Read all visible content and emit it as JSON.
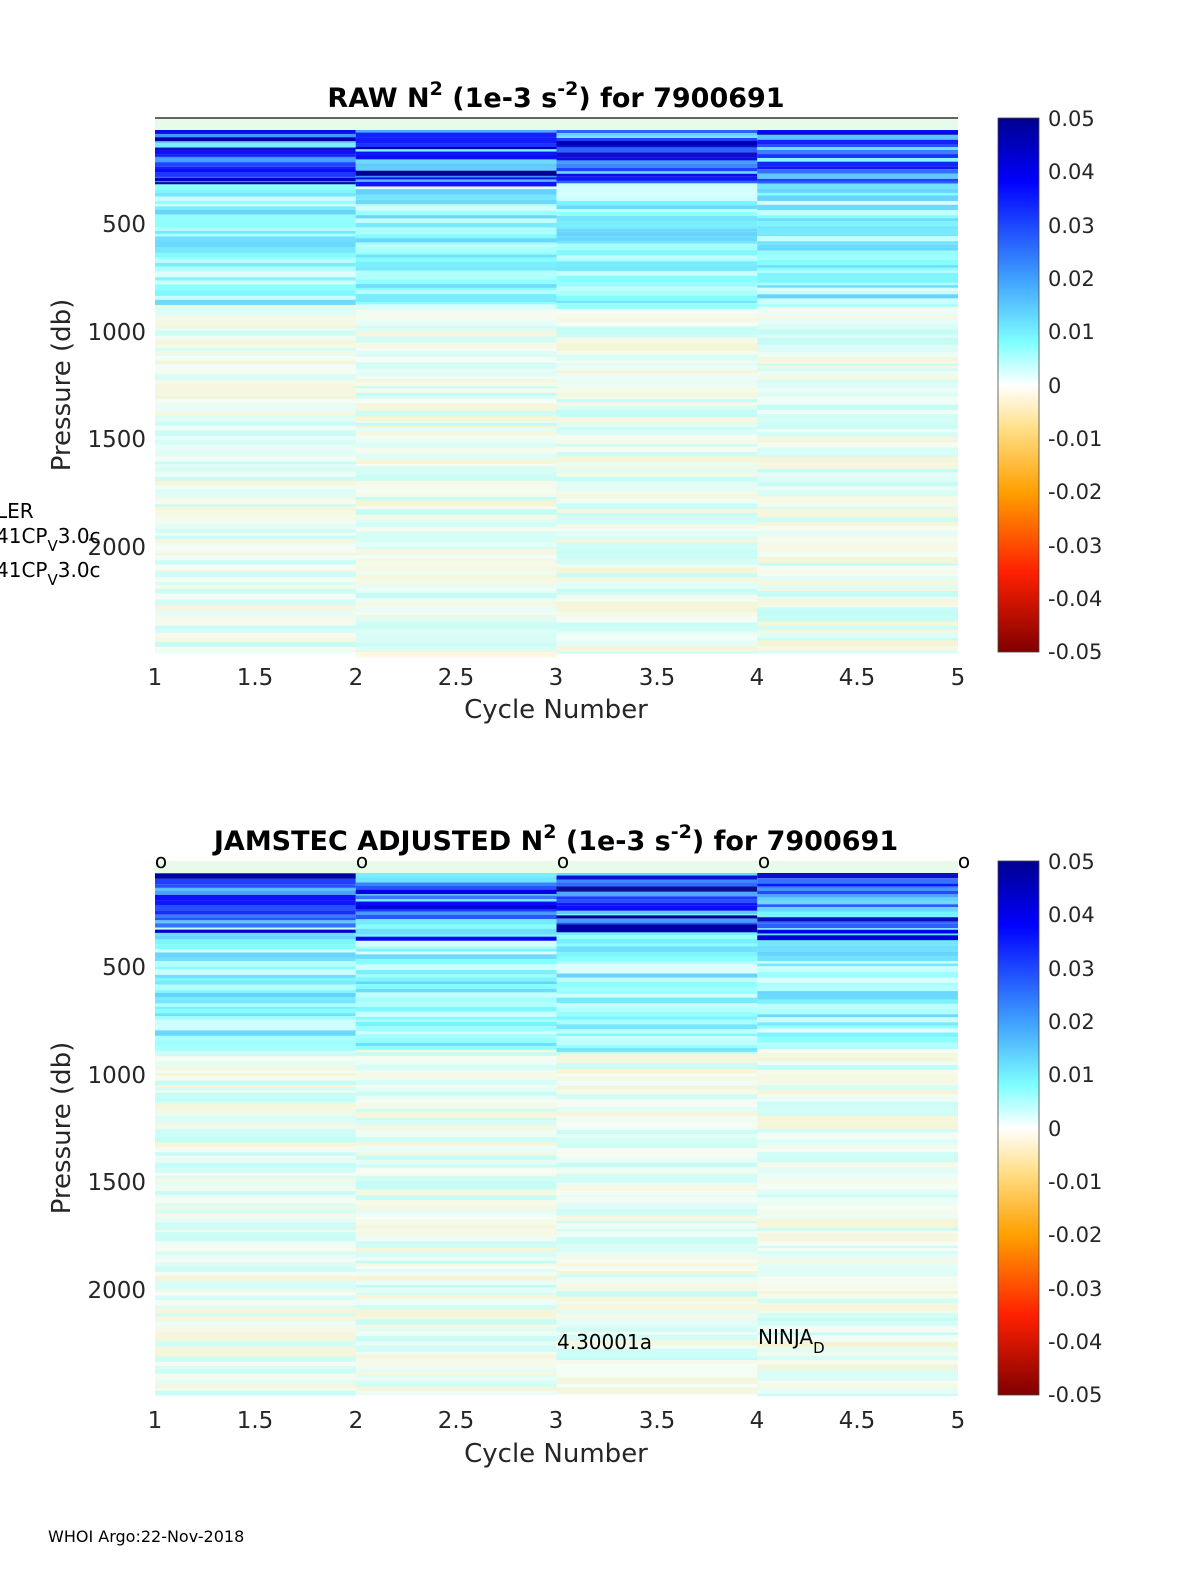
{
  "chart_data": [
    {
      "type": "heatmap",
      "title": "RAW N",
      "title_sup1": "2",
      "title_mid": " (1e-3 s",
      "title_sup2": "-2",
      "title_end": ") for 7900691",
      "xlabel": "Cycle Number",
      "ylabel": "Pressure (db)",
      "xlim": [
        1,
        5
      ],
      "ylim": [
        2450,
        0
      ],
      "xticks": [
        "1",
        "1.5",
        "2",
        "2.5",
        "3",
        "3.5",
        "4",
        "4.5",
        "5"
      ],
      "yticks": [
        "500",
        "1000",
        "1500",
        "2000"
      ],
      "colorbar": {
        "ticks": [
          "0.05",
          "0.04",
          "0.03",
          "0.02",
          "0.01",
          "0",
          "-0.01",
          "-0.02",
          "-0.03",
          "-0.04",
          "-0.05"
        ],
        "lim": [
          -0.05,
          0.05
        ]
      },
      "cycles": [
        1,
        2,
        3,
        4
      ],
      "surface_values": [
        0.045,
        0.02,
        0.04,
        0.05
      ],
      "annotations": [
        {
          "line1": "LER"
        },
        {
          "pre": "41CP",
          "sub": "V",
          "post": "3.0c"
        },
        {
          "pre": "41CP",
          "sub": "V",
          "post": "3.0c"
        }
      ]
    },
    {
      "type": "heatmap",
      "title": "JAMSTEC  ADJUSTED N",
      "title_sup1": "2",
      "title_mid": " (1e-3 s",
      "title_sup2": "-2",
      "title_end": ") for 7900691",
      "xlabel": "Cycle Number",
      "ylabel": "Pressure (db)",
      "xlim": [
        1,
        5
      ],
      "ylim": [
        2450,
        0
      ],
      "xticks": [
        "1",
        "1.5",
        "2",
        "2.5",
        "3",
        "3.5",
        "4",
        "4.5",
        "5"
      ],
      "yticks": [
        "500",
        "1000",
        "1500",
        "2000"
      ],
      "colorbar": {
        "ticks": [
          "0.05",
          "0.04",
          "0.03",
          "0.02",
          "0.01",
          "0",
          "-0.01",
          "-0.02",
          "-0.03",
          "-0.04",
          "-0.05"
        ],
        "lim": [
          -0.05,
          0.05
        ]
      },
      "markers": {
        "symbol": "o",
        "x": [
          1,
          2,
          3,
          4,
          5
        ]
      },
      "annotations": [
        {
          "text": "4.30001a",
          "x": 3
        },
        {
          "pre": "NINJA",
          "sub": "D",
          "x": 4
        }
      ]
    }
  ],
  "footer": "WHOI Argo:22-Nov-2018"
}
